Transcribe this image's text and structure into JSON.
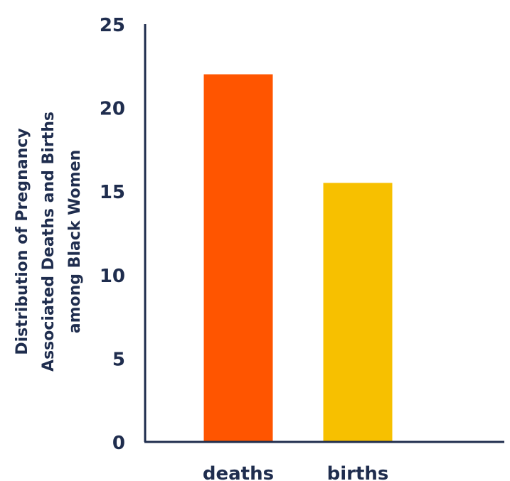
{
  "chart_data": {
    "type": "bar",
    "title": "",
    "xlabel": "",
    "ylabel_lines": [
      "Distribution of Pregnancy",
      "Associated Deaths and Births",
      "among Black Women"
    ],
    "categories": [
      "deaths",
      "births"
    ],
    "values": [
      22.0,
      15.5
    ],
    "colors": [
      "#ff5500",
      "#f7c000"
    ],
    "ylim": [
      0,
      25
    ],
    "yticks": [
      "0",
      "5",
      "10",
      "15",
      "20",
      "25"
    ],
    "grid": false,
    "legend": "none"
  },
  "colors": {
    "text": "#1f2d4e",
    "axis": "#1f2d4e",
    "background": "#ffffff"
  }
}
